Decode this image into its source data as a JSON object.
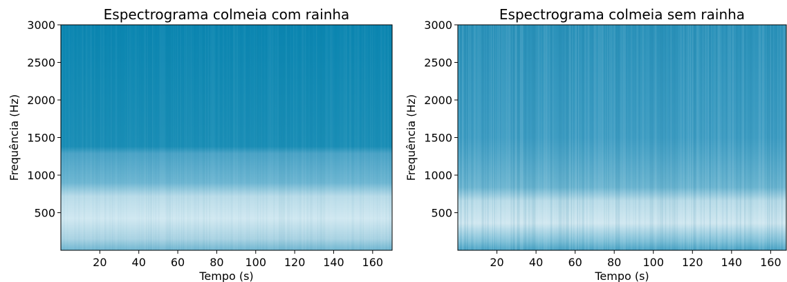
{
  "chart_data": [
    {
      "type": "spectrogram",
      "title": "Espectrograma colmeia com rainha",
      "xlabel": "Tempo (s)",
      "ylabel": "Frequência (Hz)",
      "xlim": [
        0,
        170
      ],
      "ylim": [
        0,
        3000
      ],
      "xticks": [
        20,
        40,
        60,
        80,
        100,
        120,
        140,
        160
      ],
      "yticks": [
        500,
        1000,
        1500,
        2000,
        2500,
        3000
      ]
    },
    {
      "type": "spectrogram",
      "title": "Espectrograma colmeia sem rainha",
      "xlabel": "Tempo (s)",
      "ylabel": "Frequência (Hz)",
      "xlim": [
        0,
        168
      ],
      "ylim": [
        0,
        3000
      ],
      "xticks": [
        20,
        40,
        60,
        80,
        100,
        120,
        140,
        160
      ],
      "yticks": [
        500,
        1000,
        1500,
        2000,
        2500,
        3000
      ]
    }
  ]
}
